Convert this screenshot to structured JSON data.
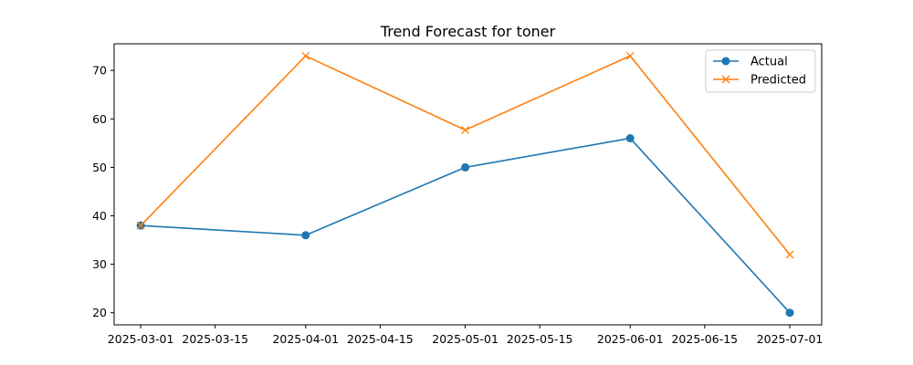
{
  "chart_data": {
    "type": "line",
    "title": "Trend Forecast for toner",
    "xlabel": "",
    "ylabel": "",
    "x_ticks": [
      "2025-03-01",
      "2025-03-15",
      "2025-04-01",
      "2025-04-15",
      "2025-05-01",
      "2025-05-15",
      "2025-06-01",
      "2025-06-15",
      "2025-07-01"
    ],
    "y_ticks": [
      20,
      30,
      40,
      50,
      60,
      70
    ],
    "xlim": [
      "2025-02-24",
      "2025-07-07"
    ],
    "ylim": [
      17.5,
      75.5
    ],
    "grid": false,
    "legend_position": "top-right",
    "x": [
      "2025-03-01",
      "2025-04-01",
      "2025-05-01",
      "2025-06-01",
      "2025-07-01"
    ],
    "series": [
      {
        "name": "Actual",
        "values": [
          38,
          36,
          50,
          56,
          20
        ],
        "color": "#1f77b4",
        "marker": "circle"
      },
      {
        "name": "Predicted",
        "values": [
          38,
          73,
          57.7,
          73,
          32
        ],
        "color": "#ff7f0e",
        "marker": "x"
      }
    ]
  }
}
